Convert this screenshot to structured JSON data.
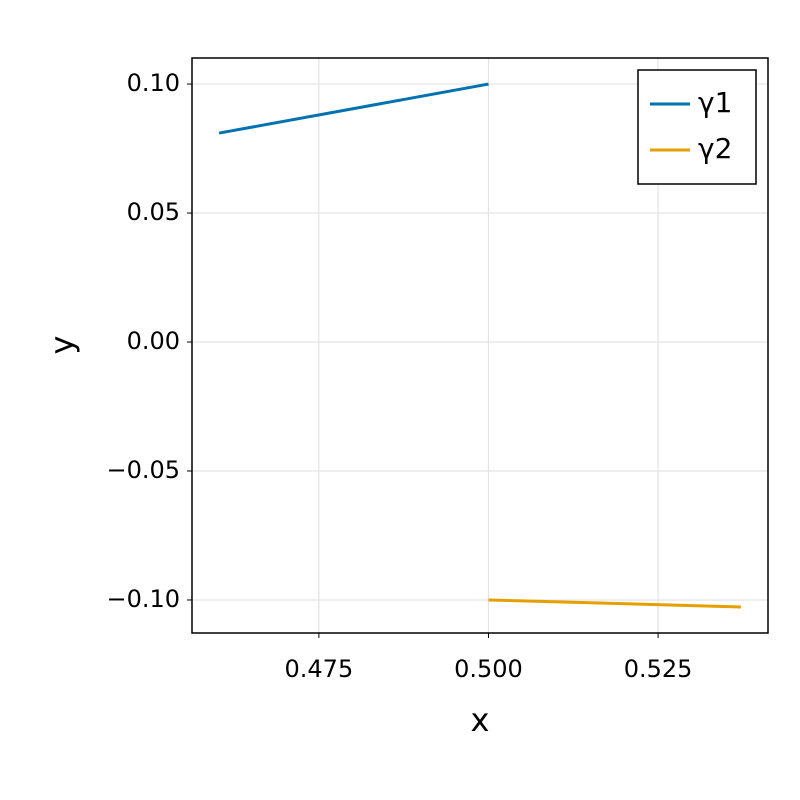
{
  "chart_data": {
    "type": "line",
    "xlabel": "x",
    "ylabel": "y",
    "series": [
      {
        "name": "γ1",
        "color": "#0072b2",
        "x": [
          0.4603,
          0.5
        ],
        "values": [
          0.081,
          0.1
        ]
      },
      {
        "name": "γ2",
        "color": "#e69f00",
        "x": [
          0.5,
          0.5372
        ],
        "values": [
          -0.1,
          -0.1027
        ]
      }
    ],
    "xlim": [
      0.4563,
      0.5412
    ],
    "ylim": [
      -0.1128,
      0.1101
    ],
    "xticks": [
      0.475,
      {
        "value": 0.5,
        "label": "0.500"
      },
      0.525
    ],
    "yticks": [
      {
        "value": -0.1,
        "label": "−0.10"
      },
      {
        "value": -0.05,
        "label": "−0.05"
      },
      {
        "value": 0,
        "label": "0.00"
      },
      {
        "value": 0.05,
        "label": "0.05"
      },
      {
        "value": 0.1,
        "label": "0.10"
      }
    ],
    "grid": true,
    "legend": "top-right"
  }
}
